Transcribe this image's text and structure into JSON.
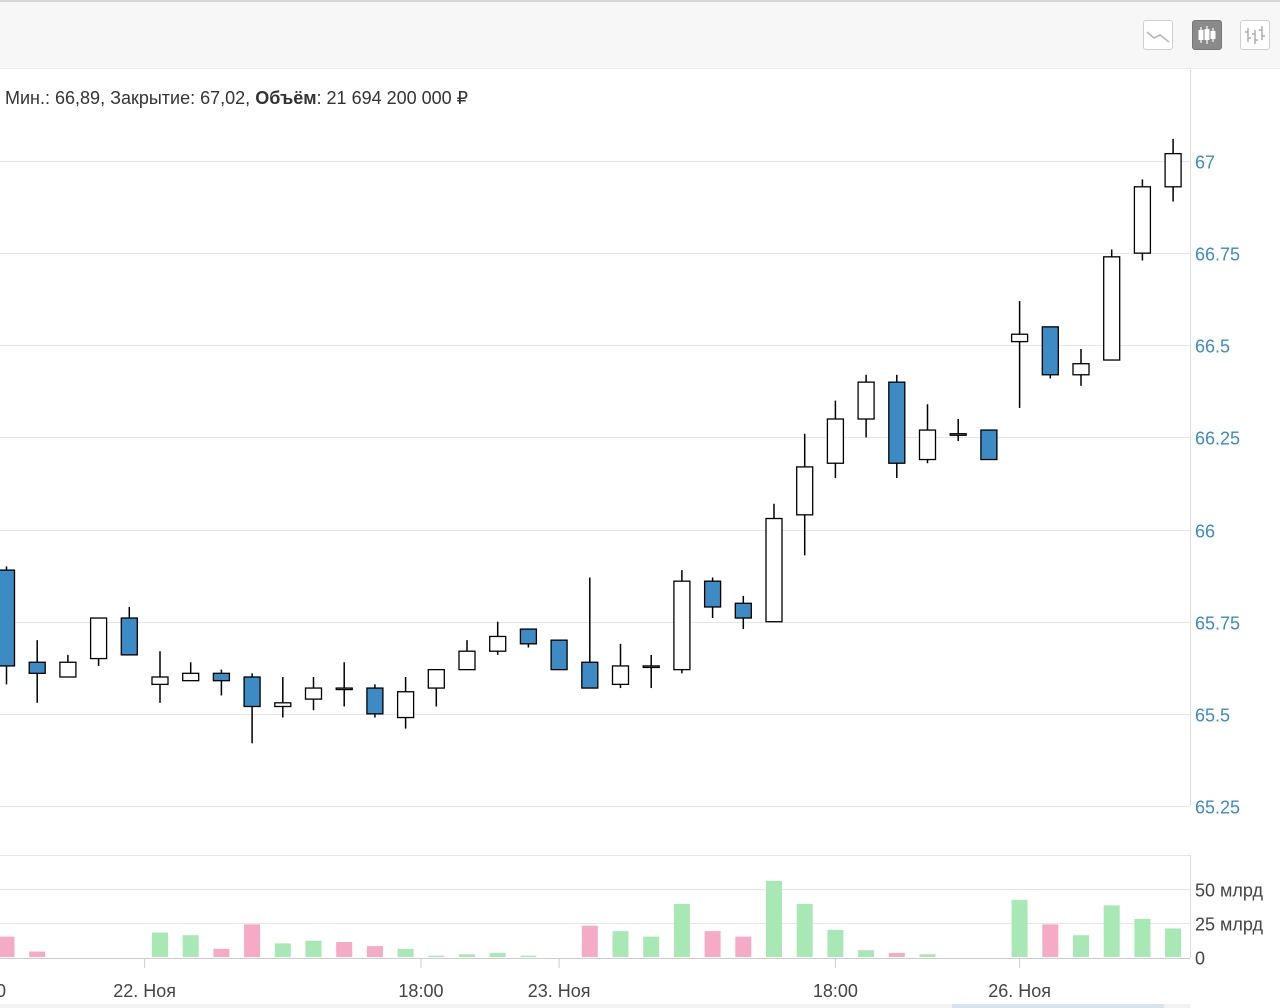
{
  "toolbar": {
    "buttons": [
      {
        "name": "line-chart-button",
        "icon": "line-chart-icon",
        "active": false
      },
      {
        "name": "candlestick-chart-button",
        "icon": "candlestick-icon",
        "active": true
      },
      {
        "name": "ohlc-chart-button",
        "icon": "ohlc-bars-icon",
        "active": false
      }
    ]
  },
  "tooltip": {
    "low_label": "Мин.:",
    "low_value": "66,89",
    "close_label": "Закрытие:",
    "close_value": "67,02",
    "volume_label": "Объём",
    "volume_value": "21 694 200 000 ₽"
  },
  "colors": {
    "down_candle": "#3d8bc4",
    "up_candle": "#ffffff",
    "volume_up": "#a8e8b5",
    "volume_down": "#f5aac5",
    "axis_label": "#3d8bc4",
    "grid": "#e6e6e6"
  },
  "chart_data": {
    "type": "candlestick",
    "price_axis": {
      "ylim": [
        65.25,
        67.0
      ],
      "ticks": [
        "67",
        "66.75",
        "66.5",
        "66.25",
        "66",
        "65.75",
        "65.5",
        "65.25"
      ],
      "tick_values": [
        67.0,
        66.75,
        66.5,
        66.25,
        66.0,
        65.75,
        65.5,
        65.25
      ]
    },
    "volume_axis": {
      "ylim": [
        0,
        50
      ],
      "unit": "млрд",
      "ticks": [
        "50 млрд",
        "25 млрд",
        "0"
      ],
      "tick_values": [
        50,
        25,
        0
      ]
    },
    "x_labels": [
      "22. Ноя",
      "18:00",
      "23. Ноя",
      "18:00",
      "26. Ноя"
    ],
    "x_label_positions": [
      4.5,
      13.5,
      18,
      27,
      33
    ],
    "left_cut_label": "0",
    "candles": [
      {
        "i": 0,
        "o": 65.89,
        "h": 65.9,
        "l": 65.58,
        "c": 65.63
      },
      {
        "i": 1,
        "o": 65.64,
        "h": 65.7,
        "l": 65.53,
        "c": 65.61
      },
      {
        "i": 2,
        "o": 65.6,
        "h": 65.66,
        "l": 65.6,
        "c": 65.64
      },
      {
        "i": 3,
        "o": 65.65,
        "h": 65.76,
        "l": 65.63,
        "c": 65.76
      },
      {
        "i": 4,
        "o": 65.76,
        "h": 65.79,
        "l": 65.66,
        "c": 65.66
      },
      {
        "i": 5,
        "o": 65.58,
        "h": 65.67,
        "l": 65.53,
        "c": 65.6
      },
      {
        "i": 6,
        "o": 65.59,
        "h": 65.64,
        "l": 65.59,
        "c": 65.61
      },
      {
        "i": 7,
        "o": 65.61,
        "h": 65.62,
        "l": 65.55,
        "c": 65.59
      },
      {
        "i": 8,
        "o": 65.6,
        "h": 65.61,
        "l": 65.42,
        "c": 65.52
      },
      {
        "i": 9,
        "o": 65.52,
        "h": 65.6,
        "l": 65.49,
        "c": 65.53
      },
      {
        "i": 10,
        "o": 65.54,
        "h": 65.6,
        "l": 65.51,
        "c": 65.57
      },
      {
        "i": 11,
        "o": 65.57,
        "h": 65.64,
        "l": 65.52,
        "c": 65.57
      },
      {
        "i": 12,
        "o": 65.57,
        "h": 65.58,
        "l": 65.49,
        "c": 65.5
      },
      {
        "i": 13,
        "o": 65.49,
        "h": 65.6,
        "l": 65.46,
        "c": 65.56
      },
      {
        "i": 14,
        "o": 65.57,
        "h": 65.62,
        "l": 65.52,
        "c": 65.62
      },
      {
        "i": 15,
        "o": 65.62,
        "h": 65.7,
        "l": 65.62,
        "c": 65.67
      },
      {
        "i": 16,
        "o": 65.67,
        "h": 65.75,
        "l": 65.66,
        "c": 65.71
      },
      {
        "i": 17,
        "o": 65.73,
        "h": 65.73,
        "l": 65.68,
        "c": 65.69
      },
      {
        "i": 18,
        "o": 65.7,
        "h": 65.7,
        "l": 65.62,
        "c": 65.62
      },
      {
        "i": 19,
        "o": 65.64,
        "h": 65.87,
        "l": 65.57,
        "c": 65.57
      },
      {
        "i": 20,
        "o": 65.58,
        "h": 65.69,
        "l": 65.57,
        "c": 65.63
      },
      {
        "i": 21,
        "o": 65.63,
        "h": 65.66,
        "l": 65.57,
        "c": 65.63
      },
      {
        "i": 22,
        "o": 65.62,
        "h": 65.89,
        "l": 65.61,
        "c": 65.86
      },
      {
        "i": 23,
        "o": 65.86,
        "h": 65.87,
        "l": 65.76,
        "c": 65.79
      },
      {
        "i": 24,
        "o": 65.8,
        "h": 65.82,
        "l": 65.73,
        "c": 65.76
      },
      {
        "i": 25,
        "o": 65.75,
        "h": 66.07,
        "l": 65.75,
        "c": 66.03
      },
      {
        "i": 26,
        "o": 66.04,
        "h": 66.26,
        "l": 65.93,
        "c": 66.17
      },
      {
        "i": 27,
        "o": 66.18,
        "h": 66.35,
        "l": 66.14,
        "c": 66.3
      },
      {
        "i": 28,
        "o": 66.3,
        "h": 66.42,
        "l": 66.25,
        "c": 66.4
      },
      {
        "i": 29,
        "o": 66.4,
        "h": 66.42,
        "l": 66.14,
        "c": 66.18
      },
      {
        "i": 30,
        "o": 66.19,
        "h": 66.34,
        "l": 66.18,
        "c": 66.27
      },
      {
        "i": 31,
        "o": 66.26,
        "h": 66.3,
        "l": 66.24,
        "c": 66.26
      },
      {
        "i": 32,
        "o": 66.27,
        "h": 66.27,
        "l": 66.19,
        "c": 66.19
      },
      {
        "i": 33,
        "o": 66.51,
        "h": 66.62,
        "l": 66.33,
        "c": 66.53
      },
      {
        "i": 34,
        "o": 66.55,
        "h": 66.55,
        "l": 66.41,
        "c": 66.42
      },
      {
        "i": 35,
        "o": 66.42,
        "h": 66.49,
        "l": 66.39,
        "c": 66.45
      },
      {
        "i": 36,
        "o": 66.46,
        "h": 66.76,
        "l": 66.46,
        "c": 66.74
      },
      {
        "i": 37,
        "o": 66.75,
        "h": 66.95,
        "l": 66.73,
        "c": 66.93
      },
      {
        "i": 38,
        "o": 66.93,
        "h": 67.06,
        "l": 66.89,
        "c": 67.02
      }
    ],
    "volume": [
      {
        "i": 0,
        "v": 15,
        "dir": "down"
      },
      {
        "i": 1,
        "v": 4,
        "dir": "down"
      },
      {
        "i": 5,
        "v": 18,
        "dir": "up"
      },
      {
        "i": 6,
        "v": 16,
        "dir": "up"
      },
      {
        "i": 7,
        "v": 6,
        "dir": "down"
      },
      {
        "i": 8,
        "v": 24,
        "dir": "down"
      },
      {
        "i": 9,
        "v": 10,
        "dir": "up"
      },
      {
        "i": 10,
        "v": 12,
        "dir": "up"
      },
      {
        "i": 11,
        "v": 11,
        "dir": "down"
      },
      {
        "i": 12,
        "v": 8,
        "dir": "down"
      },
      {
        "i": 13,
        "v": 6,
        "dir": "up"
      },
      {
        "i": 14,
        "v": 1,
        "dir": "up"
      },
      {
        "i": 15,
        "v": 2,
        "dir": "up"
      },
      {
        "i": 16,
        "v": 3,
        "dir": "up"
      },
      {
        "i": 17,
        "v": 1,
        "dir": "up"
      },
      {
        "i": 19,
        "v": 23,
        "dir": "down"
      },
      {
        "i": 20,
        "v": 19,
        "dir": "up"
      },
      {
        "i": 21,
        "v": 15,
        "dir": "up"
      },
      {
        "i": 22,
        "v": 39,
        "dir": "up"
      },
      {
        "i": 23,
        "v": 19,
        "dir": "down"
      },
      {
        "i": 24,
        "v": 15,
        "dir": "down"
      },
      {
        "i": 25,
        "v": 56,
        "dir": "up"
      },
      {
        "i": 26,
        "v": 39,
        "dir": "up"
      },
      {
        "i": 27,
        "v": 20,
        "dir": "up"
      },
      {
        "i": 28,
        "v": 5,
        "dir": "up"
      },
      {
        "i": 29,
        "v": 3,
        "dir": "down"
      },
      {
        "i": 30,
        "v": 2,
        "dir": "up"
      },
      {
        "i": 33,
        "v": 42,
        "dir": "up"
      },
      {
        "i": 34,
        "v": 24,
        "dir": "down"
      },
      {
        "i": 35,
        "v": 16,
        "dir": "up"
      },
      {
        "i": 36,
        "v": 38,
        "dir": "up"
      },
      {
        "i": 37,
        "v": 28,
        "dir": "up"
      },
      {
        "i": 38,
        "v": 21,
        "dir": "up"
      }
    ]
  }
}
